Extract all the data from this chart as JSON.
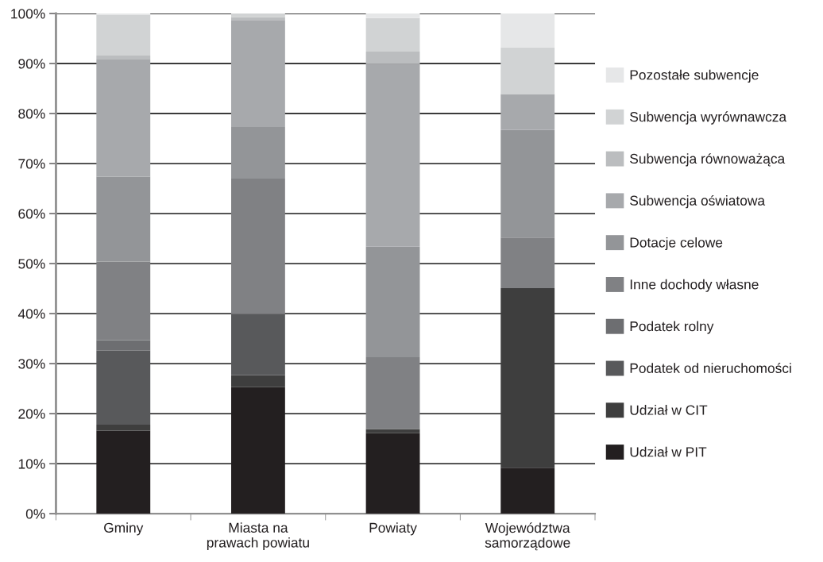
{
  "chart_data": {
    "type": "bar",
    "stacked": true,
    "categories": [
      "Gminy",
      "Miasta na\nprawach powiatu",
      "Powiaty",
      "Województwa\nsamorządowe"
    ],
    "series": [
      {
        "name": "Udział w PIT",
        "color": "#231f20",
        "values": [
          16.6,
          25.3,
          16.1,
          9.2
        ]
      },
      {
        "name": "Udział w CIT",
        "color": "#3e3e3e",
        "values": [
          1.2,
          2.4,
          0.8,
          35.9
        ]
      },
      {
        "name": "Podatek od nieruchomości",
        "color": "#58595b",
        "values": [
          14.8,
          12.2,
          0,
          0
        ]
      },
      {
        "name": "Podatek rolny",
        "color": "#6d6e71",
        "values": [
          2.1,
          0,
          0,
          0
        ]
      },
      {
        "name": "Inne dochody własne",
        "color": "#808184",
        "values": [
          15.7,
          27.1,
          14.4,
          10.1
        ]
      },
      {
        "name": "Dotacje celowe",
        "color": "#939598",
        "values": [
          17.0,
          10.3,
          22.1,
          21.5
        ]
      },
      {
        "name": "Subwencja oświatowa",
        "color": "#a7a9ac",
        "values": [
          23.4,
          21.4,
          36.5,
          7.2
        ]
      },
      {
        "name": "Subwencja równoważąca",
        "color": "#bbbdbf",
        "values": [
          0.8,
          0.6,
          2.5,
          0
        ]
      },
      {
        "name": "Subwencja wyrównawcza",
        "color": "#d1d3d4",
        "values": [
          8.1,
          0.7,
          6.7,
          9.3
        ]
      },
      {
        "name": "Pozostałe subwencje",
        "color": "#e6e7e8",
        "values": [
          0.3,
          null,
          0.9,
          6.8
        ]
      }
    ],
    "ylim": [
      0,
      100
    ],
    "yticks": [
      {
        "value": 0,
        "label": "0%"
      },
      {
        "value": 10,
        "label": "10%"
      },
      {
        "value": 20,
        "label": "20%"
      },
      {
        "value": 30,
        "label": "30%"
      },
      {
        "value": 40,
        "label": "40%"
      },
      {
        "value": 50,
        "label": "50%"
      },
      {
        "value": 60,
        "label": "60%"
      },
      {
        "value": 70,
        "label": "70%"
      },
      {
        "value": 80,
        "label": "80%"
      },
      {
        "value": 90,
        "label": "90%"
      },
      {
        "value": 100,
        "label": "100%"
      }
    ],
    "grid": "y",
    "legend": "right"
  }
}
